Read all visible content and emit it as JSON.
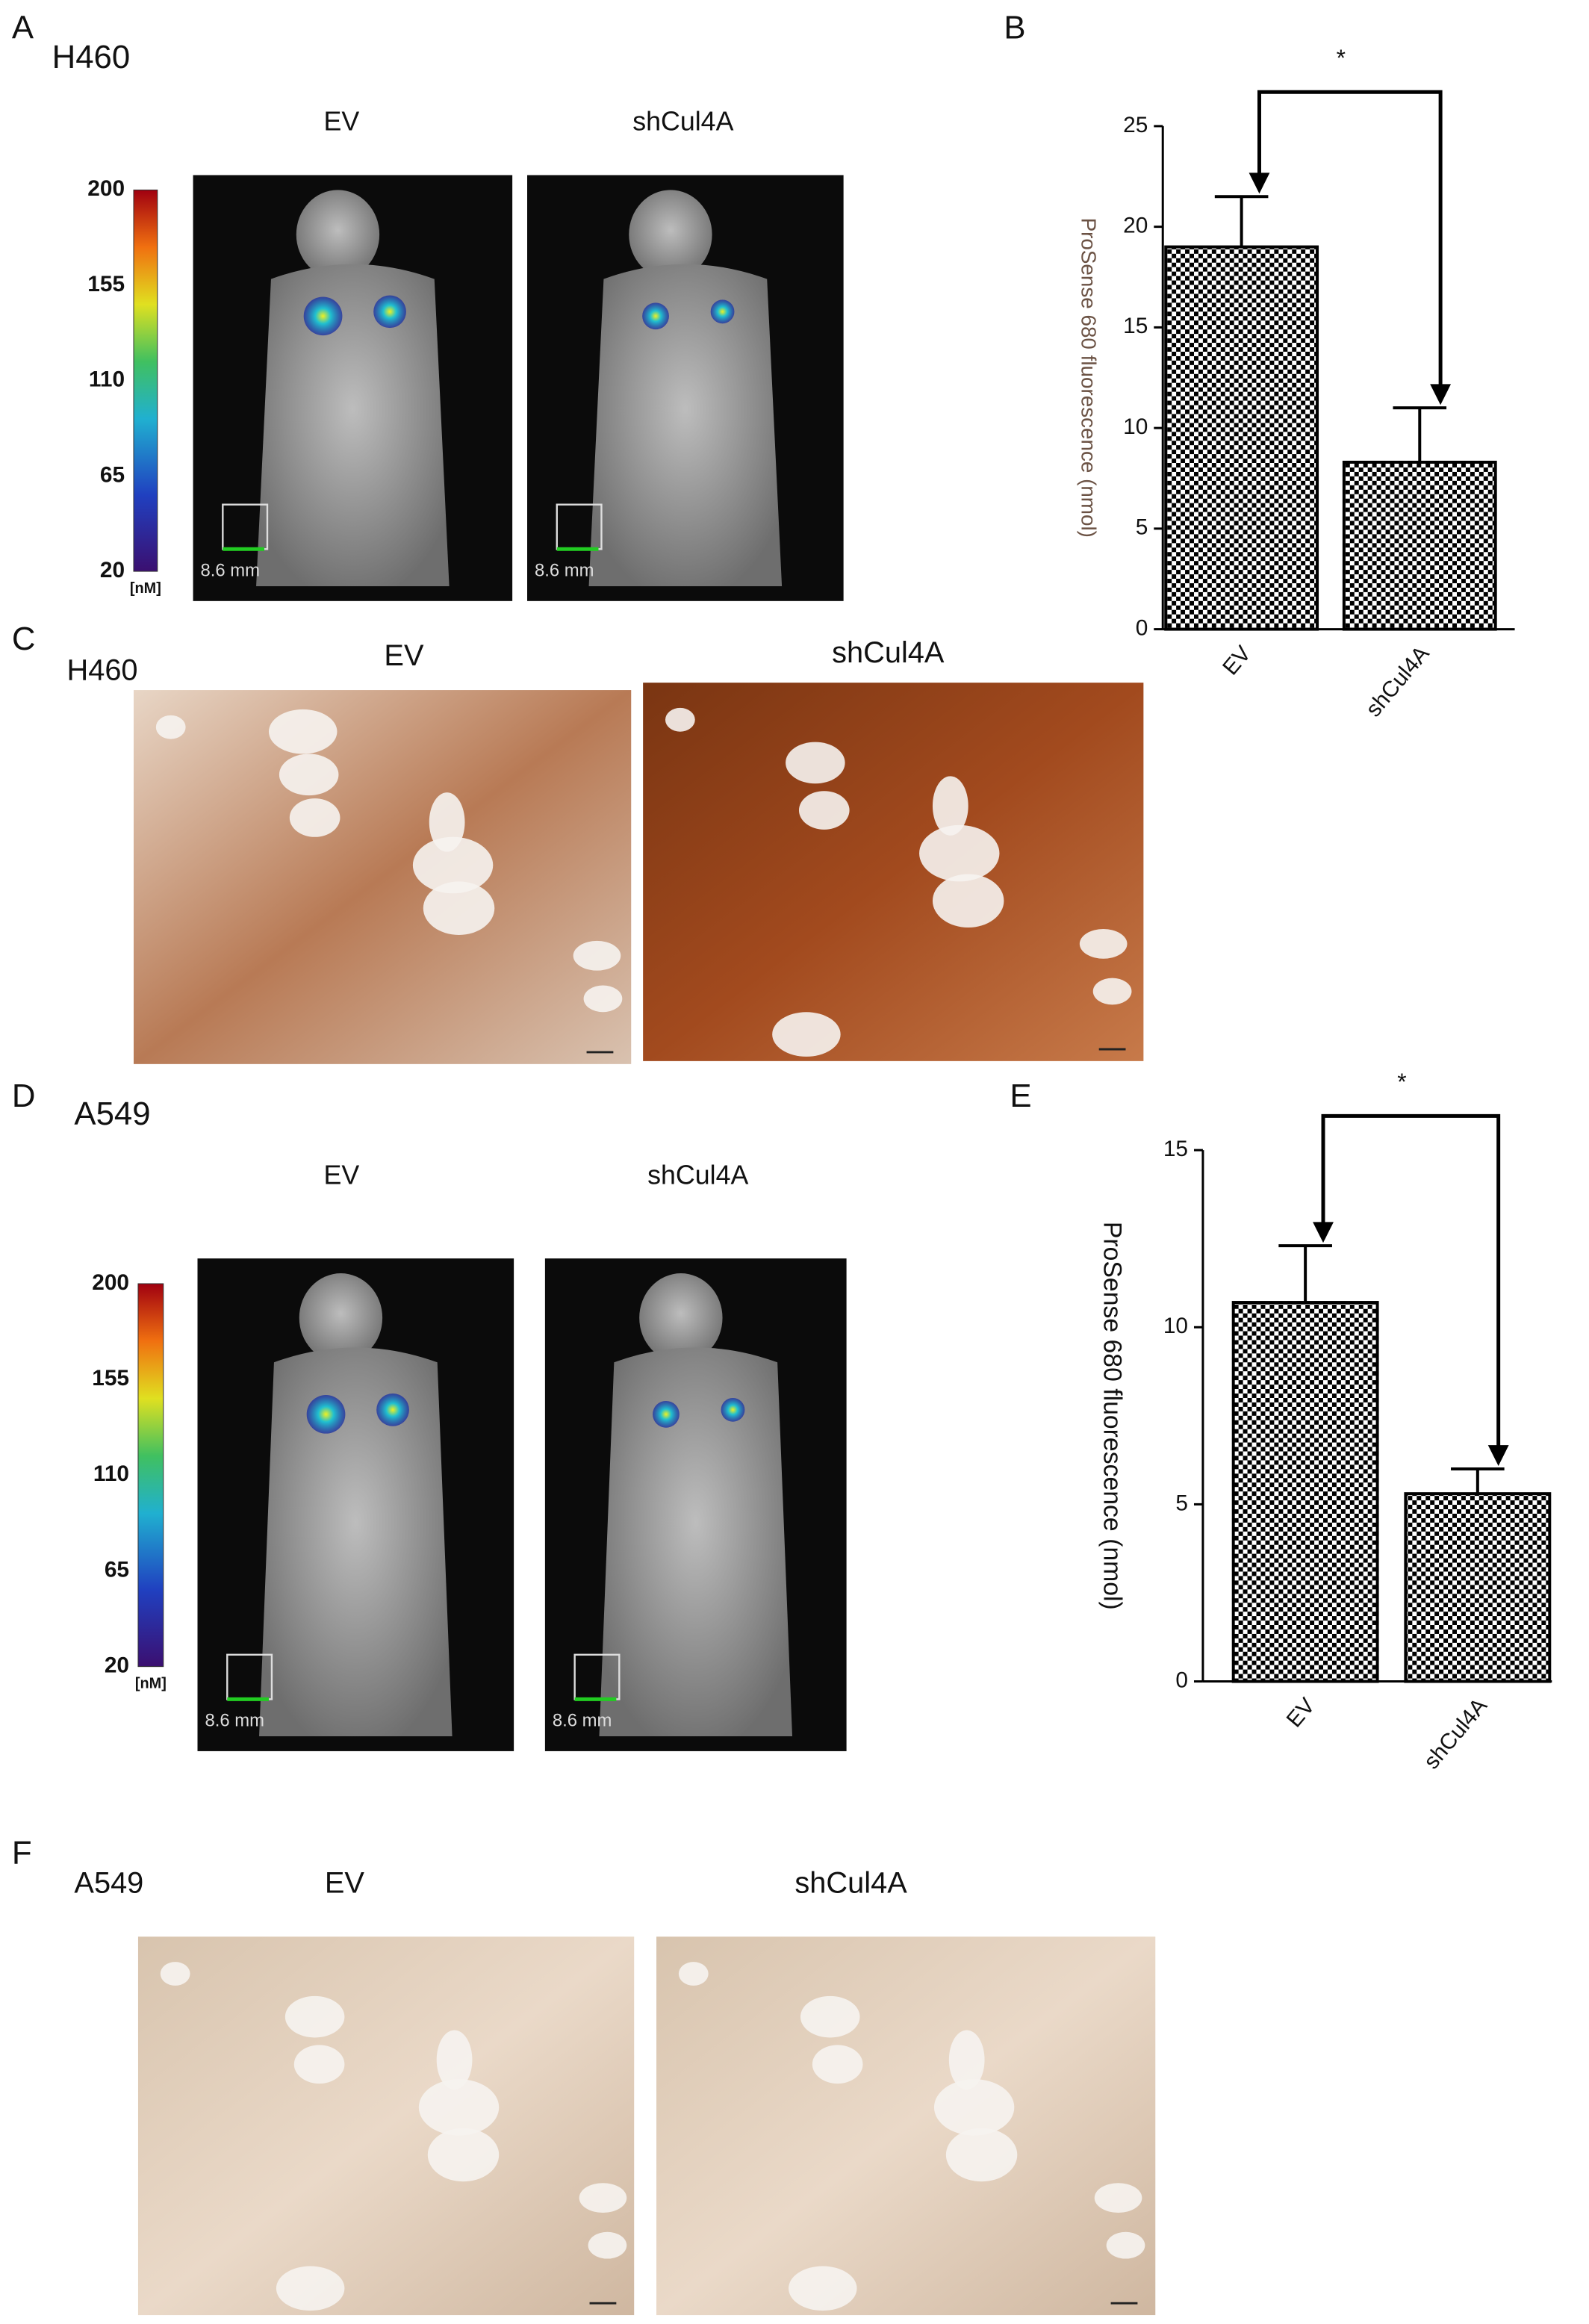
{
  "chart_data": [
    {
      "type": "bar",
      "ylabel": "ProSense 680 fluorescence (nmol)",
      "categories": [
        "EV",
        "shCul4A"
      ],
      "values": [
        19,
        8.3
      ],
      "errors": [
        2.5,
        2.7
      ],
      "color": "#000000",
      "ylim": [
        0,
        25
      ],
      "yticks": [
        0,
        5,
        10,
        15,
        20,
        25
      ],
      "annotation": "*"
    },
    {
      "type": "bar",
      "ylabel": "ProSense 680 fluorescence (nmol)",
      "categories": [
        "EV",
        "shCul4A"
      ],
      "values": [
        10.7,
        5.3
      ],
      "errors": [
        1.6,
        0.7
      ],
      "color": "#000000",
      "ylim": [
        0,
        15
      ],
      "yticks": [
        0,
        5,
        10,
        15
      ],
      "annotation": "*"
    }
  ],
  "panel_labels": [
    "A",
    "B",
    "C",
    "D",
    "E",
    "F"
  ],
  "imaging": [
    {
      "cell_line": "H460",
      "conditions": [
        "EV",
        "shCul4A"
      ],
      "colorbar_ticks": [
        200,
        155,
        110,
        65,
        20
      ],
      "colorbar_unit": "[nM]",
      "scale_labels": [
        "8.6 mm",
        "8.6 mm"
      ]
    },
    {
      "cell_line": "A549",
      "conditions": [
        "EV",
        "shCul4A"
      ],
      "colorbar_ticks": [
        200,
        155,
        110,
        65,
        20
      ],
      "colorbar_unit": "[nM]",
      "scale_labels": [
        "8.6 mm",
        "8.6 mm"
      ]
    }
  ],
  "histology": [
    {
      "cell_line": "H460",
      "conditions": [
        "EV",
        "shCul4A"
      ]
    },
    {
      "cell_line": "A549",
      "conditions": [
        "EV",
        "shCul4A"
      ]
    }
  ]
}
